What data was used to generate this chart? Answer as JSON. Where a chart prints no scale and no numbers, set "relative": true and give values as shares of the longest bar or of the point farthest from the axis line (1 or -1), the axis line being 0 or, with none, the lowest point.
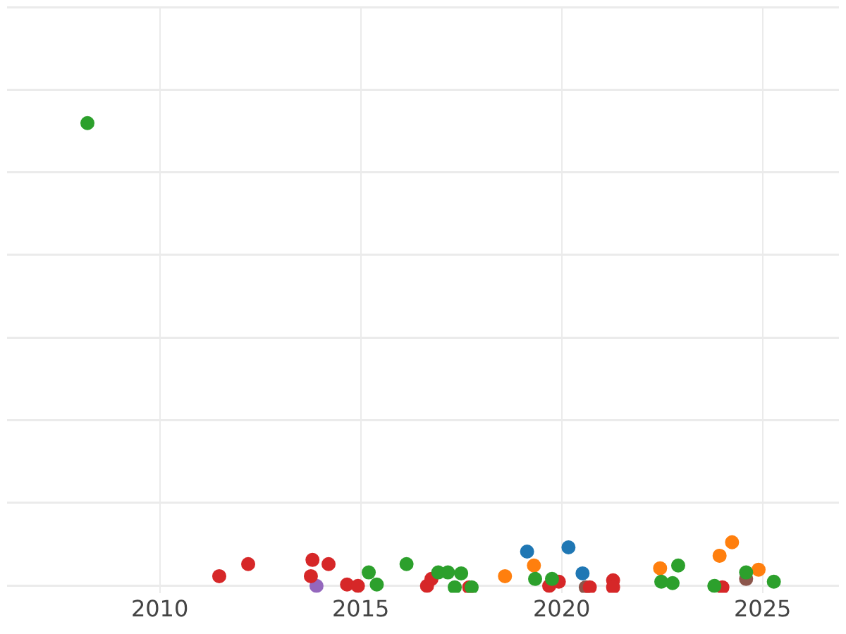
{
  "chart_data": {
    "type": "scatter",
    "relative": true,
    "xlim": [
      2006.2,
      2026.9
    ],
    "xticks": [
      2010,
      2015,
      2020,
      2025
    ],
    "grid": true,
    "legend": false,
    "tick_labels": "x",
    "marker": "circle",
    "series": [
      {
        "color": "#2ca02c",
        "x": [
          2008.2,
          2015.2,
          2015.4,
          2016.14,
          2016.93,
          2017.17,
          2017.5,
          2017.34,
          2017.76,
          2019.34,
          2019.76,
          2022.48,
          2022.76,
          2022.9,
          2023.8,
          2024.59,
          2025.28
        ],
        "values": [
          1,
          0.032,
          0.006,
          0.05,
          0.032,
          0.032,
          0.03,
          0,
          0,
          0.018,
          0.018,
          0.012,
          0.009,
          0.047,
          0.003,
          0.032,
          0.012
        ]
      },
      {
        "color": "#d62728",
        "x": [
          2011.48,
          2012.2,
          2013.8,
          2013.76,
          2014.2,
          2014.66,
          2014.93,
          2016.65,
          2016.76,
          2017.7,
          2019.69,
          2019.93,
          2020.7,
          2021.28,
          2021.28,
          2024.0
        ],
        "values": [
          0.024,
          0.05,
          0.059,
          0.024,
          0.05,
          0.006,
          0.003,
          0.003,
          0.018,
          0,
          0.003,
          0.012,
          0,
          0.015,
          0,
          0
        ]
      },
      {
        "color": "#9467bd",
        "x": [
          2013.9
        ],
        "values": [
          0.003
        ]
      },
      {
        "color": "#ff7f0e",
        "x": [
          2018.59,
          2019.31,
          2022.45,
          2023.93,
          2024.24,
          2024.9
        ],
        "values": [
          0.024,
          0.047,
          0.041,
          0.068,
          0.097,
          0.038
        ]
      },
      {
        "color": "#1f77b4",
        "x": [
          2019.14,
          2020.17,
          2020.52
        ],
        "values": [
          0.077,
          0.086,
          0.03
        ]
      },
      {
        "color": "#8c564b",
        "x": [
          2020.6,
          2024.59
        ],
        "values": [
          0,
          0.018
        ]
      }
    ]
  }
}
